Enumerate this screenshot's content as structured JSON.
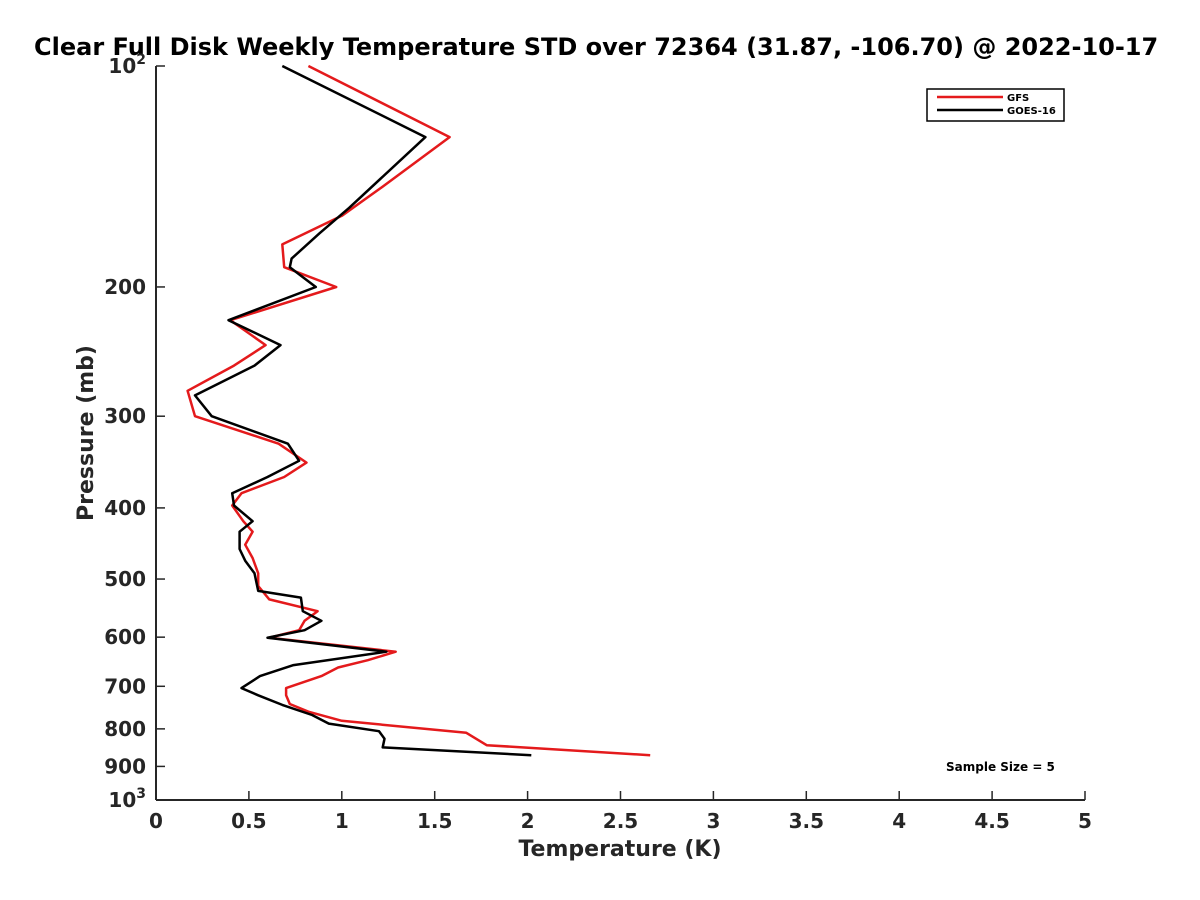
{
  "chart_data": {
    "type": "line",
    "title": "Clear Full Disk Weekly Temperature STD over 72364 (31.87, -106.70) @ 2022-10-17",
    "xlabel": "Temperature (K)",
    "ylabel": "Pressure (mb)",
    "xlim": [
      0,
      5
    ],
    "ylim": [
      100,
      1000
    ],
    "y_scale": "log",
    "y_reversed": true,
    "grid": false,
    "legend_position": "top-right",
    "x_ticks": [
      "0",
      "0.5",
      "1",
      "1.5",
      "2",
      "2.5",
      "3",
      "3.5",
      "4",
      "4.5",
      "5"
    ],
    "y_ticks": [
      {
        "value": 100,
        "base": "10",
        "exp": "2"
      },
      {
        "value": 200,
        "label": "200"
      },
      {
        "value": 300,
        "label": "300"
      },
      {
        "value": 400,
        "label": "400"
      },
      {
        "value": 500,
        "label": "500"
      },
      {
        "value": 600,
        "label": "600"
      },
      {
        "value": 700,
        "label": "700"
      },
      {
        "value": 800,
        "label": "800"
      },
      {
        "value": 900,
        "label": "900"
      },
      {
        "value": 1000,
        "base": "10",
        "exp": "3"
      }
    ],
    "annotation": "Sample Size = 5",
    "series": [
      {
        "name": "GFS",
        "color": "#e41a1c",
        "points": [
          [
            0.82,
            100
          ],
          [
            1.58,
            125
          ],
          [
            1.22,
            146
          ],
          [
            1.0,
            160
          ],
          [
            0.68,
            175
          ],
          [
            0.69,
            188
          ],
          [
            0.97,
            200
          ],
          [
            0.4,
            222
          ],
          [
            0.59,
            240
          ],
          [
            0.42,
            256
          ],
          [
            0.17,
            277
          ],
          [
            0.21,
            300
          ],
          [
            0.66,
            327
          ],
          [
            0.81,
            347
          ],
          [
            0.69,
            363
          ],
          [
            0.46,
            382
          ],
          [
            0.41,
            397
          ],
          [
            0.47,
            417
          ],
          [
            0.52,
            431
          ],
          [
            0.48,
            449
          ],
          [
            0.52,
            468
          ],
          [
            0.55,
            491
          ],
          [
            0.55,
            511
          ],
          [
            0.61,
            533
          ],
          [
            0.87,
            553
          ],
          [
            0.8,
            570
          ],
          [
            0.77,
            587
          ],
          [
            0.61,
            601
          ],
          [
            1.29,
            628
          ],
          [
            1.14,
            645
          ],
          [
            0.98,
            660
          ],
          [
            0.89,
            678
          ],
          [
            0.7,
            704
          ],
          [
            0.7,
            720
          ],
          [
            0.72,
            740
          ],
          [
            0.82,
            758
          ],
          [
            1.0,
            780
          ],
          [
            1.67,
            810
          ],
          [
            1.78,
            842
          ],
          [
            2.66,
            869
          ]
        ]
      },
      {
        "name": "GOES-16",
        "color": "#000000",
        "points": [
          [
            0.68,
            100
          ],
          [
            1.45,
            125
          ],
          [
            1.04,
            156
          ],
          [
            0.88,
            169
          ],
          [
            0.73,
            183
          ],
          [
            0.72,
            188
          ],
          [
            0.86,
            200
          ],
          [
            0.39,
            222
          ],
          [
            0.67,
            240
          ],
          [
            0.53,
            256
          ],
          [
            0.21,
            281
          ],
          [
            0.3,
            300
          ],
          [
            0.71,
            327
          ],
          [
            0.77,
            345
          ],
          [
            0.6,
            363
          ],
          [
            0.41,
            382
          ],
          [
            0.42,
            397
          ],
          [
            0.52,
            417
          ],
          [
            0.45,
            431
          ],
          [
            0.45,
            455
          ],
          [
            0.48,
            472
          ],
          [
            0.53,
            491
          ],
          [
            0.55,
            519
          ],
          [
            0.78,
            530
          ],
          [
            0.79,
            553
          ],
          [
            0.89,
            570
          ],
          [
            0.8,
            587
          ],
          [
            0.6,
            601
          ],
          [
            1.24,
            628
          ],
          [
            0.74,
            655
          ],
          [
            0.56,
            678
          ],
          [
            0.46,
            704
          ],
          [
            0.55,
            720
          ],
          [
            0.68,
            742
          ],
          [
            0.84,
            766
          ],
          [
            0.93,
            787
          ],
          [
            1.2,
            806
          ],
          [
            1.23,
            825
          ],
          [
            1.22,
            848
          ],
          [
            2.02,
            869
          ]
        ]
      }
    ]
  }
}
